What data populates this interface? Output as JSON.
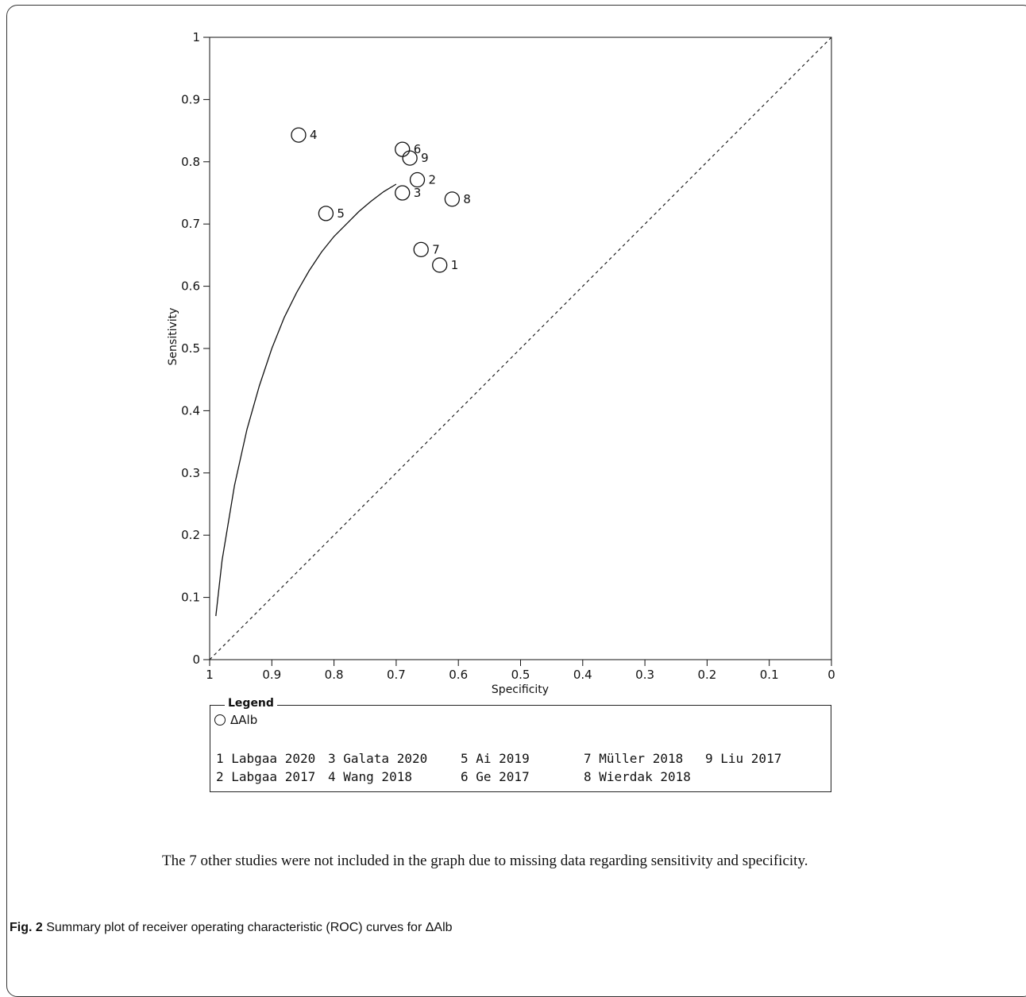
{
  "chart_data": {
    "type": "scatter",
    "xlabel": "Specificity",
    "ylabel": "Sensitivity",
    "xlim": [
      1,
      0
    ],
    "ylim": [
      0,
      1
    ],
    "x_ticks": [
      "1",
      "0.9",
      "0.8",
      "0.7",
      "0.6",
      "0.5",
      "0.4",
      "0.3",
      "0.2",
      "0.1",
      "0"
    ],
    "y_ticks": [
      "0",
      "0.1",
      "0.2",
      "0.3",
      "0.4",
      "0.5",
      "0.6",
      "0.7",
      "0.8",
      "0.9",
      "1"
    ],
    "points": [
      {
        "label": "1",
        "specificity": 0.63,
        "sensitivity": 0.634
      },
      {
        "label": "2",
        "specificity": 0.666,
        "sensitivity": 0.771
      },
      {
        "label": "3",
        "specificity": 0.69,
        "sensitivity": 0.75
      },
      {
        "label": "4",
        "specificity": 0.857,
        "sensitivity": 0.843
      },
      {
        "label": "5",
        "specificity": 0.813,
        "sensitivity": 0.717
      },
      {
        "label": "6",
        "specificity": 0.69,
        "sensitivity": 0.82
      },
      {
        "label": "7",
        "specificity": 0.66,
        "sensitivity": 0.659
      },
      {
        "label": "8",
        "specificity": 0.61,
        "sensitivity": 0.74
      },
      {
        "label": "9",
        "specificity": 0.678,
        "sensitivity": 0.806
      }
    ],
    "sroc_curve": {
      "specificity": [
        0.99,
        0.98,
        0.96,
        0.94,
        0.92,
        0.9,
        0.88,
        0.86,
        0.84,
        0.82,
        0.8,
        0.78,
        0.76,
        0.74,
        0.72,
        0.7
      ],
      "sensitivity": [
        0.07,
        0.16,
        0.28,
        0.37,
        0.44,
        0.5,
        0.55,
        0.59,
        0.625,
        0.655,
        0.68,
        0.7,
        0.72,
        0.737,
        0.752,
        0.764
      ]
    },
    "diagonal": true,
    "legend": {
      "title": "Legend",
      "series": "ΔAlb",
      "studies": [
        "1 Labgaa 2020",
        "2 Labgaa 2017",
        "3 Galata 2020",
        "4 Wang 2018",
        "5 Ai 2019",
        "6 Ge 2017",
        "7 Müller 2018",
        "8 Wierdak 2018",
        "9 Liu 2017"
      ]
    }
  },
  "note": "The 7 other studies were not included in the graph due to missing data regarding sensitivity and specificity.",
  "caption": {
    "label": "Fig. 2",
    "text": "Summary plot of receiver operating characteristic (ROC) curves for ΔAlb"
  }
}
